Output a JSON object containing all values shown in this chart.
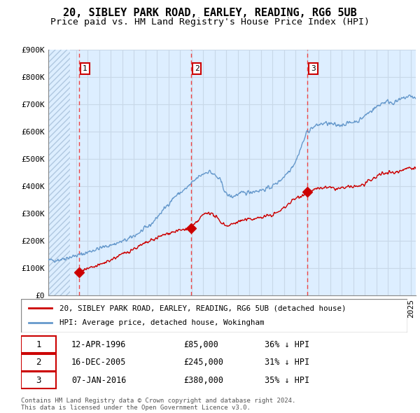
{
  "title": "20, SIBLEY PARK ROAD, EARLEY, READING, RG6 5UB",
  "subtitle": "Price paid vs. HM Land Registry's House Price Index (HPI)",
  "ylim": [
    0,
    900000
  ],
  "yticks": [
    0,
    100000,
    200000,
    300000,
    400000,
    500000,
    600000,
    700000,
    800000,
    900000
  ],
  "ytick_labels": [
    "£0",
    "£100K",
    "£200K",
    "£300K",
    "£400K",
    "£500K",
    "£600K",
    "£700K",
    "£800K",
    "£900K"
  ],
  "sale_dates_num": [
    1996.28,
    2005.96,
    2016.03
  ],
  "sale_prices": [
    85000,
    245000,
    380000
  ],
  "sale_labels": [
    "1",
    "2",
    "3"
  ],
  "sale_info": [
    {
      "num": "1",
      "date": "12-APR-1996",
      "price": "£85,000",
      "pct": "36% ↓ HPI"
    },
    {
      "num": "2",
      "date": "16-DEC-2005",
      "price": "£245,000",
      "pct": "31% ↓ HPI"
    },
    {
      "num": "3",
      "date": "07-JAN-2016",
      "price": "£380,000",
      "pct": "35% ↓ HPI"
    }
  ],
  "hpi_color": "#6699cc",
  "sale_color": "#cc0000",
  "marker_color": "#cc0000",
  "dashed_line_color": "#ee4444",
  "grid_color": "#c8d8e8",
  "bg_color": "#ddeeff",
  "hatch_color": "#b0c8e0",
  "legend_label_sale": "20, SIBLEY PARK ROAD, EARLEY, READING, RG6 5UB (detached house)",
  "legend_label_hpi": "HPI: Average price, detached house, Wokingham",
  "footer": "Contains HM Land Registry data © Crown copyright and database right 2024.\nThis data is licensed under the Open Government Licence v3.0.",
  "xmin": 1993.6,
  "xmax": 2025.4,
  "title_fontsize": 11,
  "subtitle_fontsize": 9.5,
  "tick_fontsize": 8
}
